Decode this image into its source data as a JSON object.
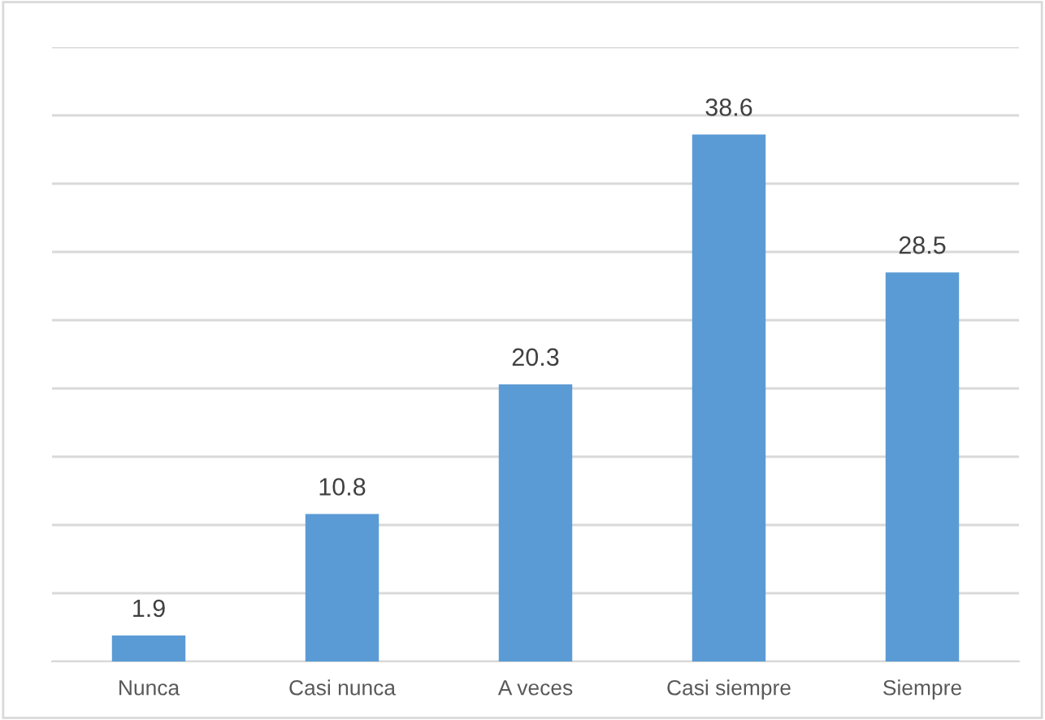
{
  "chart_data": {
    "type": "bar",
    "categories": [
      "Nunca",
      "Casi nunca",
      "A veces",
      "Casi siempre",
      "Siempre"
    ],
    "values": [
      1.9,
      10.8,
      20.3,
      38.6,
      28.5
    ],
    "color": "#5b9bd5",
    "data_labels": true,
    "ylim": [
      0,
      45
    ],
    "yticks": [
      {
        "value": 0,
        "label": null
      },
      {
        "value": 5,
        "label": null
      },
      {
        "value": 10,
        "label": null
      },
      {
        "value": 15,
        "label": null
      },
      {
        "value": 20,
        "label": null
      },
      {
        "value": 25,
        "label": null
      },
      {
        "value": 30,
        "label": null
      },
      {
        "value": 35,
        "label": null
      },
      {
        "value": 40,
        "label": null
      },
      {
        "value": 45,
        "label": null
      }
    ],
    "grid": "y",
    "tick_labels": "x"
  }
}
